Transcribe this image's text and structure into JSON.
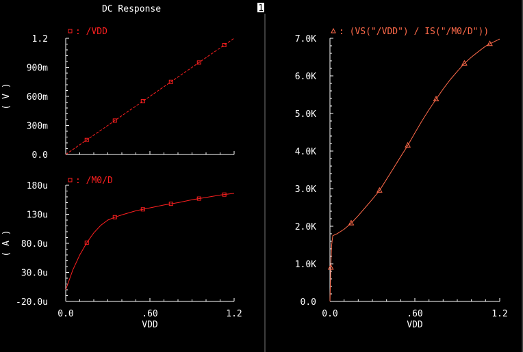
{
  "title": "DC Response",
  "indicator": "1",
  "colors": {
    "background": "#000000",
    "axes": "#ffffff",
    "trace": "#ff2020",
    "trace2": "#ff6a4a"
  },
  "chart_data": [
    {
      "type": "line",
      "id": "top-left",
      "legend": "/VDD",
      "marker": "square",
      "ylabel": "( V )",
      "xlim": [
        0,
        1.2
      ],
      "ylim": [
        0,
        1.2
      ],
      "yticks": [
        0,
        0.3,
        0.6,
        0.9,
        1.2
      ],
      "ytick_labels": [
        "0.0",
        "300m",
        "600m",
        "900m",
        "1.2"
      ],
      "series": [
        {
          "name": "/VDD",
          "x": [
            0,
            0.1,
            0.2,
            0.3,
            0.4,
            0.5,
            0.6,
            0.7,
            0.8,
            0.9,
            1.0,
            1.1,
            1.2
          ],
          "y": [
            0,
            0.1,
            0.2,
            0.3,
            0.4,
            0.5,
            0.6,
            0.7,
            0.8,
            0.9,
            1.0,
            1.1,
            1.2
          ],
          "marker_x": [
            0.15,
            0.35,
            0.55,
            0.75,
            0.95,
            1.13
          ]
        }
      ]
    },
    {
      "type": "line",
      "id": "bottom-left",
      "legend": "/M0/D",
      "marker": "square",
      "ylabel": "( A )",
      "xlabel": "VDD",
      "xlim": [
        0,
        1.2
      ],
      "ylim": [
        -20,
        180
      ],
      "xticks": [
        0,
        0.6,
        1.2
      ],
      "xtick_labels": [
        "0.0",
        ".60",
        "1.2"
      ],
      "yticks": [
        -20,
        30,
        80,
        130,
        180
      ],
      "ytick_labels": [
        "-20.0u",
        "30.0u",
        "80.0u",
        "130u",
        "180u"
      ],
      "series": [
        {
          "name": "/M0/D",
          "x": [
            0,
            0.05,
            0.1,
            0.15,
            0.2,
            0.25,
            0.3,
            0.35,
            0.4,
            0.5,
            0.6,
            0.7,
            0.8,
            0.9,
            1.0,
            1.1,
            1.2
          ],
          "y": [
            0,
            34,
            60,
            81,
            98,
            111,
            120,
            125,
            129,
            136,
            141,
            146,
            150,
            155,
            159,
            163,
            166
          ],
          "marker_x": [
            0.15,
            0.35,
            0.55,
            0.75,
            0.95,
            1.13
          ]
        }
      ]
    },
    {
      "type": "line",
      "id": "right",
      "legend": "(VS(\"/VDD\") / IS(\"/M0/D\"))",
      "marker": "triangle",
      "xlabel": "VDD",
      "xlim": [
        0,
        1.2
      ],
      "ylim": [
        0,
        7000
      ],
      "xticks": [
        0,
        0.6,
        1.2
      ],
      "xtick_labels": [
        "0.0",
        ".60",
        "1.2"
      ],
      "yticks": [
        0,
        1000,
        2000,
        3000,
        4000,
        5000,
        6000,
        7000
      ],
      "ytick_labels": [
        "0.0",
        "1.0K",
        "2.0K",
        "3.0K",
        "4.0K",
        "5.0K",
        "6.0K",
        "7.0K"
      ],
      "series": [
        {
          "name": "VS/IS",
          "x": [
            0,
            0.006,
            0.012,
            0.02,
            0.05,
            0.1,
            0.15,
            0.2,
            0.25,
            0.3,
            0.35,
            0.4,
            0.45,
            0.5,
            0.55,
            0.6,
            0.65,
            0.7,
            0.75,
            0.8,
            0.85,
            0.9,
            0.95,
            1.0,
            1.05,
            1.1,
            1.15,
            1.2
          ],
          "y": [
            0,
            900,
            1500,
            1750,
            1800,
            1920,
            2080,
            2280,
            2500,
            2720,
            2950,
            3250,
            3550,
            3850,
            4150,
            4480,
            4800,
            5100,
            5380,
            5650,
            5900,
            6120,
            6330,
            6500,
            6650,
            6790,
            6890,
            6980
          ],
          "marker_x": [
            0.006,
            0.15,
            0.35,
            0.55,
            0.75,
            0.95,
            1.13
          ]
        }
      ]
    }
  ]
}
